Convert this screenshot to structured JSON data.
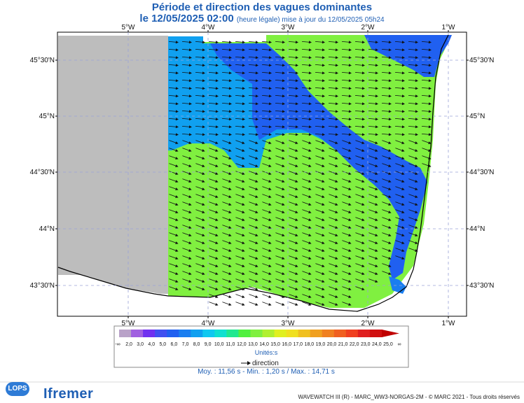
{
  "header": {
    "title": "Période et direction des vagues dominantes",
    "date_line": "le 12/05/2025 02:00",
    "date_sub": "(heure légale) mise à jour du 12/05/2025 05h24"
  },
  "map": {
    "lon_labels": [
      "5°W",
      "4°W",
      "3°W",
      "2°W",
      "1°W"
    ],
    "lat_labels": [
      "45°30'N",
      "45°N",
      "44°30'N",
      "44°N",
      "43°30'N"
    ],
    "land_color": "#ffffff",
    "nodata_color": "#bdbdbd"
  },
  "legend": {
    "ticks": [
      "-∞",
      "2,0",
      "3,0",
      "4,0",
      "5,0",
      "6,0",
      "7,0",
      "8,0",
      "9,0",
      "10,0",
      "11,0",
      "12,0",
      "13,0",
      "14,0",
      "15,0",
      "16,0",
      "17,0",
      "18,0",
      "19,0",
      "20,0",
      "21,0",
      "22,0",
      "23,0",
      "24,0",
      "25,0",
      "∞"
    ],
    "colors": [
      "#b9a2c8",
      "#a060e0",
      "#7030f0",
      "#4050f0",
      "#2060f0",
      "#1a7ef0",
      "#10a0f0",
      "#10c8f0",
      "#10e0d0",
      "#20e890",
      "#50f040",
      "#80f040",
      "#b0f030",
      "#e0f020",
      "#f0e020",
      "#f0c020",
      "#f0a020",
      "#f08020",
      "#f06020",
      "#f04020",
      "#e02020",
      "#d01010",
      "#c00000"
    ],
    "unit": "Unités:s",
    "direction_label": "direction",
    "stats": "Moy. : 11,56 s   -   Min. : 1,20 s / Max. : 14,71 s"
  },
  "footer": {
    "lops": "LOPS",
    "ifremer": "Ifremer",
    "credit": "WAVEWATCH III (R) - MARC_WW3-NORGAS-2M - © MARC 2021 - Tous droits réservés"
  }
}
